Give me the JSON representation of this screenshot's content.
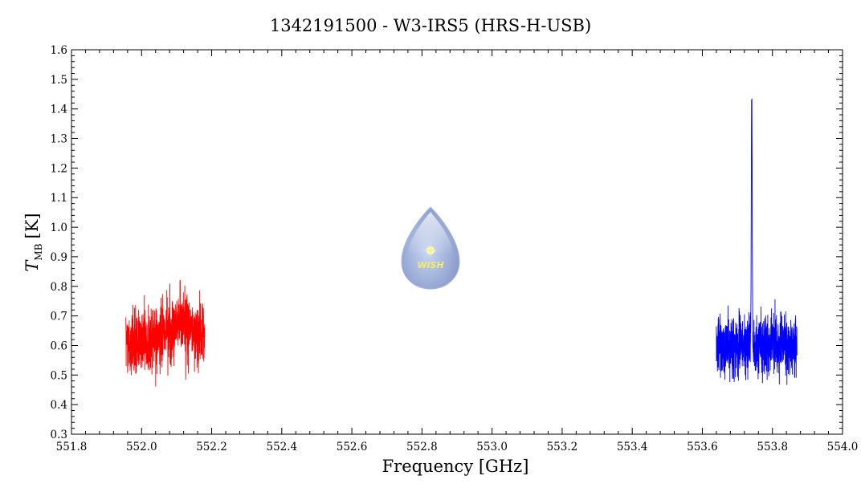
{
  "chart_data": {
    "type": "line",
    "title": "1342191500 - W3-IRS5 (HRS-H-USB)",
    "xlabel": "Frequency [GHz]",
    "ylabel_main": "T",
    "ylabel_sub": "MB",
    "ylabel_unit": "[K]",
    "xlim": [
      551.8,
      554.0
    ],
    "ylim": [
      0.3,
      1.6
    ],
    "x_ticks": [
      "551.8",
      "552.0",
      "552.2",
      "552.4",
      "552.6",
      "552.8",
      "553.0",
      "553.2",
      "553.4",
      "553.6",
      "553.8",
      "554.0"
    ],
    "y_ticks": [
      "0.3",
      "0.4",
      "0.5",
      "0.6",
      "0.7",
      "0.8",
      "0.9",
      "1.0",
      "1.1",
      "1.2",
      "1.3",
      "1.4",
      "1.5",
      "1.6"
    ],
    "grid": false,
    "series": [
      {
        "color": "#ff0000",
        "x_range": [
          551.955,
          552.18
        ],
        "baseline": [
          [
            551.955,
            0.6
          ],
          [
            552.02,
            0.61
          ],
          [
            552.08,
            0.65
          ],
          [
            552.12,
            0.68
          ],
          [
            552.18,
            0.63
          ]
        ],
        "noise_rms": 0.075
      },
      {
        "color": "#0000ff",
        "x_range": [
          553.64,
          553.87
        ],
        "baseline": [
          [
            553.64,
            0.6
          ],
          [
            553.87,
            0.6
          ]
        ],
        "noise_rms": 0.07,
        "peak": {
          "x": 553.741,
          "y": 1.48
        }
      }
    ]
  },
  "logo": {
    "text": "WISH"
  }
}
